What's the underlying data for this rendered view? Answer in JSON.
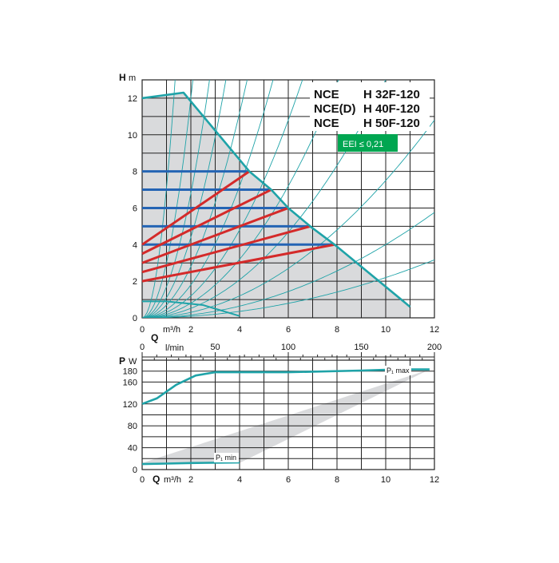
{
  "models": [
    {
      "series": "NCE",
      "type": "H 32F-120"
    },
    {
      "series": "NCE(D)",
      "type": "H 40F-120"
    },
    {
      "series": "NCE",
      "type": "H 50F-120"
    }
  ],
  "eei_label": "EEI ≤ 0,21",
  "colors": {
    "envelope": "#1fa3a8",
    "fill": "#d9dadc",
    "constant_pressure": "#2464b4",
    "proportional_pressure": "#d42a2a",
    "system_curve": "#1fa3a8",
    "eei_badge": "#00a651",
    "grid": "#222222"
  },
  "chart_data": [
    {
      "type": "line",
      "ylabel": "H",
      "yunit": "m",
      "xlabel": "Q",
      "xunit": "m³/h",
      "xunit2": "l/min",
      "xlim": [
        0,
        12
      ],
      "ylim": [
        0,
        13
      ],
      "xticks": [
        0,
        2,
        4,
        6,
        8,
        10,
        12
      ],
      "yticks": [
        0,
        2,
        4,
        6,
        8,
        10,
        12
      ],
      "x2ticks": [
        0,
        50,
        100,
        150,
        200
      ],
      "grid": true,
      "max_curve": [
        [
          0,
          12
        ],
        [
          1.7,
          12.3
        ],
        [
          4.4,
          8.0
        ],
        [
          5.3,
          7.0
        ],
        [
          6.0,
          6.0
        ],
        [
          6.9,
          5.0
        ],
        [
          7.9,
          4.0
        ],
        [
          11,
          0.6
        ]
      ],
      "low_curve": [
        [
          0,
          0.9
        ],
        [
          1,
          0.9
        ],
        [
          2.5,
          0.7
        ],
        [
          4,
          0.1
        ]
      ],
      "constant_pressure": [
        {
          "h": 8,
          "q_max": 4.4
        },
        {
          "h": 7,
          "q_max": 5.3
        },
        {
          "h": 6,
          "q_max": 6.0
        },
        {
          "h": 5,
          "q_max": 6.9
        },
        {
          "h": 4,
          "q_max": 7.9
        }
      ],
      "proportional_pressure": [
        {
          "h0": 4.0,
          "q_end": 4.4,
          "h_end": 8.0
        },
        {
          "h0": 3.5,
          "q_end": 5.3,
          "h_end": 7.0
        },
        {
          "h0": 3.0,
          "q_end": 6.0,
          "h_end": 6.0
        },
        {
          "h0": 2.5,
          "q_end": 6.9,
          "h_end": 5.0
        },
        {
          "h0": 2.0,
          "q_end": 7.9,
          "h_end": 4.0
        }
      ],
      "system_curve_k": [
        7.1,
        3.0,
        1.7,
        1.1,
        0.7,
        0.45,
        0.3,
        0.2,
        0.13,
        0.075,
        0.04,
        0.022
      ]
    },
    {
      "type": "line",
      "ylabel": "P",
      "yunit": "W",
      "xlabel": "Q",
      "xunit": "m³/h",
      "xlim": [
        0,
        12
      ],
      "ylim": [
        0,
        200
      ],
      "xticks": [
        0,
        2,
        4,
        6,
        8,
        10,
        12
      ],
      "yticks": [
        0,
        20,
        40,
        60,
        80,
        100,
        120,
        140,
        160,
        180,
        200
      ],
      "ytick_labels": [
        "0",
        "",
        "40",
        "",
        "80",
        "",
        "120",
        "",
        "160",
        "180",
        ""
      ],
      "grid": true,
      "p1_max": [
        [
          0,
          120
        ],
        [
          0.6,
          130
        ],
        [
          1.4,
          155
        ],
        [
          2.2,
          172
        ],
        [
          3,
          178
        ],
        [
          6,
          178
        ],
        [
          9,
          181
        ],
        [
          10.5,
          183
        ],
        [
          11.8,
          183
        ]
      ],
      "p1_min": [
        [
          0,
          10
        ],
        [
          1,
          11
        ],
        [
          2,
          12
        ],
        [
          4,
          13
        ]
      ],
      "p1_max_label": "P₁ max",
      "p1_min_label": "P₁ min"
    }
  ]
}
